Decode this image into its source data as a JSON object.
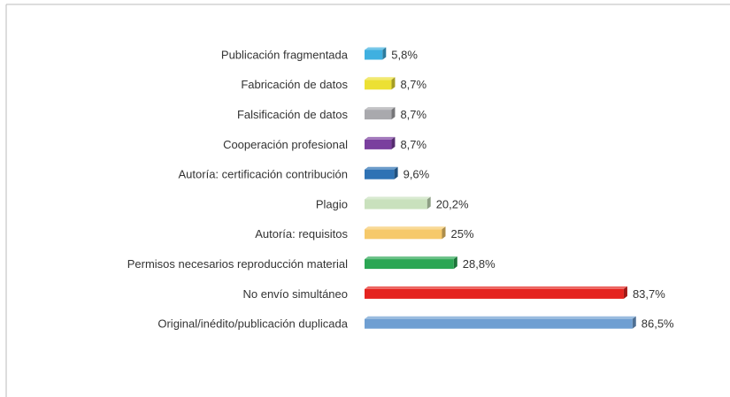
{
  "chart_data": {
    "type": "bar",
    "orientation": "horizontal",
    "categories": [
      "Publicación fragmentada",
      "Fabricación de datos",
      "Falsificación de datos",
      "Cooperación profesional",
      "Autoría: certificación contribución",
      "Plagio",
      "Autoría: requisitos",
      "Permisos necesarios reproducción material",
      "No envío simultáneo",
      "Original/inédito/publicación duplicada"
    ],
    "values": [
      5.8,
      8.7,
      8.7,
      8.7,
      9.6,
      20.2,
      25,
      28.8,
      83.7,
      86.5
    ],
    "value_labels": [
      "5,8%",
      "8,7%",
      "8,7%",
      "8,7%",
      "9,6%",
      "20,2%",
      "25%",
      "28,8%",
      "83,7%",
      "86,5%"
    ],
    "colors": [
      "#3fb0e0",
      "#ece034",
      "#a9a9ad",
      "#7a3f9e",
      "#2e72b4",
      "#c9e1bd",
      "#f6c96a",
      "#2aa653",
      "#e5231f",
      "#6f9fd2"
    ],
    "xlim": [
      0,
      100
    ]
  }
}
